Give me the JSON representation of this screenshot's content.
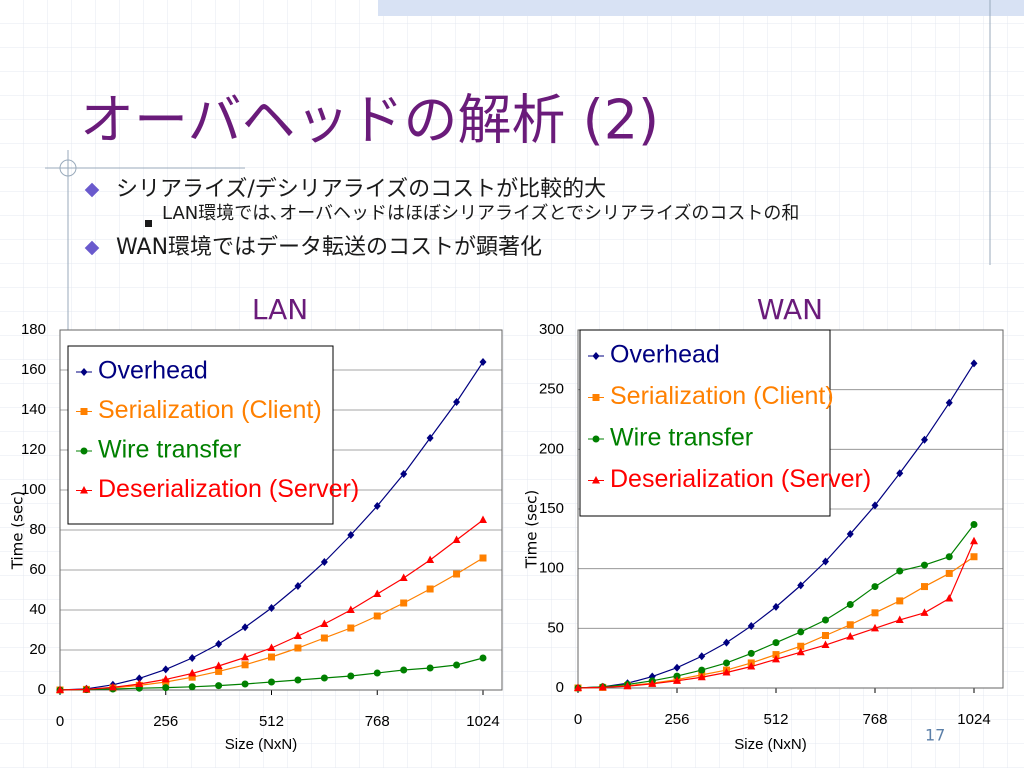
{
  "slide": {
    "title": "オーバヘッドの解析 (2)",
    "bullets": [
      {
        "text": "シリアライズ/デシリアライズのコストが比較的大",
        "sub": [
          "LAN環境では､オーバヘッドはほぼシリアライズとでシリアライズのコストの和"
        ]
      },
      {
        "text": "WAN環境ではデータ転送のコストが顕著化",
        "sub": []
      }
    ],
    "page_number": "17"
  },
  "chart_data": [
    {
      "type": "line",
      "title": "LAN",
      "x_label": "Size (NxN)",
      "y_label": "Time (sec)",
      "x": [
        0,
        64,
        128,
        192,
        256,
        320,
        384,
        448,
        512,
        576,
        640,
        704,
        768,
        832,
        896,
        960,
        1024
      ],
      "xlim": [
        0,
        1070
      ],
      "xticks": [
        0,
        256,
        512,
        768,
        1024
      ],
      "ylim": [
        0,
        180
      ],
      "yticks": [
        0,
        20,
        40,
        60,
        80,
        100,
        120,
        140,
        160,
        180
      ],
      "grid": true,
      "series": [
        {
          "name": "Overhead",
          "color": "#000080",
          "values": [
            0,
            0.6,
            2.6,
            5.8,
            10.3,
            16,
            23,
            31.4,
            41,
            52,
            64,
            77.5,
            92,
            108,
            126,
            144,
            164
          ]
        },
        {
          "name": "Serialization (Client)",
          "color": "#ff8000",
          "values": [
            0,
            0.3,
            1,
            2.3,
            4,
            6.4,
            9.3,
            12.6,
            16.5,
            21,
            26,
            31,
            37,
            43.5,
            50.5,
            58,
            66
          ]
        },
        {
          "name": "Wire transfer",
          "color": "#008000",
          "values": [
            0,
            0.2,
            0.5,
            0.9,
            1.2,
            1.6,
            2.2,
            3,
            4,
            5,
            6,
            7,
            8.5,
            10,
            11,
            12.5,
            16
          ]
        },
        {
          "name": "Deserialization (Server)",
          "color": "#ff0000",
          "values": [
            0,
            0.3,
            1.3,
            3,
            5.3,
            8.3,
            12,
            16.3,
            21,
            27,
            33,
            40,
            48,
            56,
            65,
            75,
            85
          ]
        }
      ]
    },
    {
      "type": "line",
      "title": "WAN",
      "x_label": "Size (NxN)",
      "y_label": "Time (sec)",
      "x": [
        0,
        64,
        128,
        192,
        256,
        320,
        384,
        448,
        512,
        576,
        640,
        704,
        768,
        832,
        896,
        960,
        1024
      ],
      "xlim": [
        0,
        1099
      ],
      "xticks": [
        0,
        256,
        512,
        768,
        1024
      ],
      "ylim": [
        0,
        300
      ],
      "yticks": [
        0,
        50,
        100,
        150,
        200,
        250,
        300
      ],
      "grid": true,
      "series": [
        {
          "name": "Overhead",
          "color": "#000080",
          "values": [
            0,
            1,
            4,
            9.6,
            17,
            26.6,
            38,
            52,
            68,
            86,
            106,
            129,
            153,
            180,
            208,
            239,
            272
          ]
        },
        {
          "name": "Serialization (Client)",
          "color": "#ff8000",
          "values": [
            0,
            0.5,
            2,
            4,
            7,
            11,
            15,
            21,
            28,
            35,
            44,
            53,
            63,
            73,
            85,
            96,
            110
          ]
        },
        {
          "name": "Wire transfer",
          "color": "#008000",
          "values": [
            0,
            1,
            3,
            6,
            10,
            15,
            21,
            29,
            38,
            47,
            57,
            70,
            85,
            98,
            103,
            110,
            137
          ]
        },
        {
          "name": "Deserialization (Server)",
          "color": "#ff0000",
          "values": [
            0,
            0.5,
            1.5,
            3.5,
            6,
            9,
            13,
            18,
            24,
            30,
            36,
            43,
            50,
            57,
            63,
            75,
            123
          ]
        }
      ]
    }
  ]
}
